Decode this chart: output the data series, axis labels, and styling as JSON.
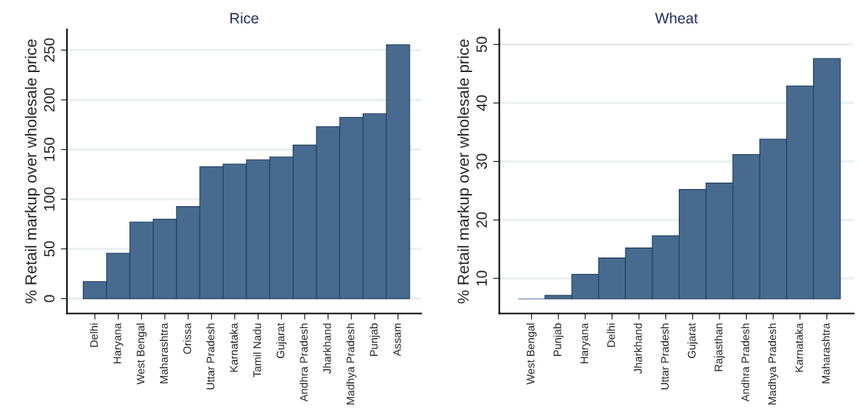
{
  "chart_data": [
    {
      "type": "bar",
      "title": "Rice",
      "ylabel": "% Retail markup over wholesale price",
      "categories": [
        "Delhi",
        "Haryana",
        "West Bengal",
        "Maharashtra",
        "Orissa",
        "Uttar Pradesh",
        "Karnataka",
        "Tamil Nadu",
        "Gujarat",
        "Andhra Pradesh",
        "Jharkhand",
        "Madhya Pradesh",
        "Punjab",
        "Assam"
      ],
      "values": [
        17.1,
        45.6,
        77,
        79.8,
        92.6,
        132.6,
        135.4,
        139.7,
        142.5,
        154.5,
        173,
        182.4,
        186.1,
        255.4
      ],
      "color": "#476a8e",
      "ylim": [
        -15,
        271
      ],
      "yticks": [
        0,
        50,
        100,
        150,
        200,
        250
      ],
      "grid": "y"
    },
    {
      "type": "bar",
      "title": "Wheat",
      "ylabel": "% Retail markup over wholesale price",
      "categories": [
        "West Bengal",
        "Punjab",
        "Haryana",
        "Delhi",
        "Jharkhand",
        "Uttar Pradesh",
        "Gujarat",
        "Rajasthan",
        "Andhra Pradesh",
        "Madhya Pradesh",
        "Karnataka",
        "Maharashtra"
      ],
      "base": [
        6.5,
        6.5,
        6.5,
        6.5,
        6.5,
        6.5,
        6.5,
        6.5,
        6.5,
        6.5,
        6.5,
        6.5
      ],
      "values": [
        0,
        0.6,
        4.2,
        7.0,
        8.7,
        10.8,
        18.7,
        19.8,
        24.7,
        27.3,
        36.4,
        41.1
      ],
      "color": "#476a8e",
      "ylim": [
        4,
        52.6
      ],
      "yticks": [
        10,
        20,
        30,
        40,
        50
      ],
      "grid": "y"
    }
  ]
}
